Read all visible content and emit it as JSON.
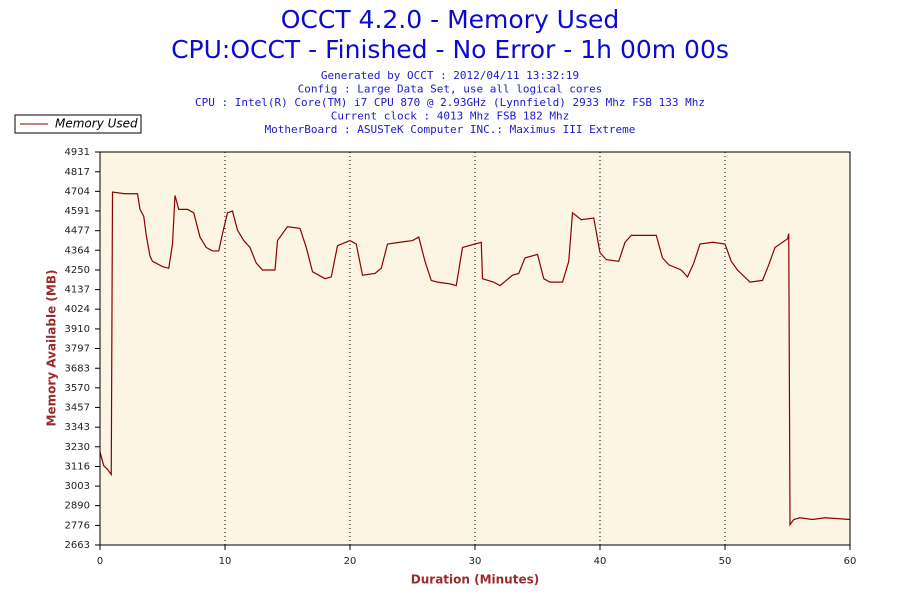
{
  "chart_data": {
    "type": "line",
    "title": "OCCT 4.2.0 - Memory Used",
    "subtitle": "CPU:OCCT - Finished - No Error - 1h 00m 00s",
    "info": [
      "Generated by OCCT : 2012/04/11 13:32:19",
      "Config : Large Data Set, use all logical cores",
      "CPU : Intel(R) Core(TM) i7 CPU 870 @ 2.93GHz (Lynnfield) 2933 Mhz FSB 133 Mhz",
      "Current clock : 4013 Mhz FSB 182 Mhz",
      "MotherBoard : ASUSTeK Computer INC.: Maximus III Extreme"
    ],
    "xlabel": "Duration (Minutes)",
    "ylabel": "Memory Available (MB)",
    "xlim": [
      0,
      60
    ],
    "xticks": [
      0,
      10,
      20,
      30,
      40,
      50,
      60
    ],
    "ylim": [
      2663,
      4931
    ],
    "yticks": [
      2663,
      2776,
      2890,
      3003,
      3116,
      3230,
      3343,
      3457,
      3570,
      3683,
      3797,
      3910,
      4024,
      4137,
      4250,
      4364,
      4477,
      4591,
      4704,
      4817,
      4931
    ],
    "grid": true,
    "x": [
      0,
      0.3,
      0.6,
      0.9,
      1.0,
      2,
      3.0,
      3.2,
      3.5,
      3.7,
      4,
      4.2,
      5,
      5.5,
      5.8,
      6,
      6.3,
      7,
      7.5,
      8,
      8.5,
      9,
      9.5,
      9.8,
      10.2,
      10.6,
      11,
      11.5,
      12,
      12.5,
      13,
      14,
      14.2,
      15,
      16,
      16.5,
      17,
      17.5,
      18,
      18.5,
      19,
      20,
      20.5,
      21,
      22,
      22.5,
      23,
      24,
      25,
      25.5,
      26,
      26.5,
      27,
      28,
      28.5,
      29,
      30,
      30.5,
      30.6,
      31.5,
      32,
      33,
      33.5,
      34,
      35,
      35.5,
      36,
      37,
      37.5,
      37.8,
      38.5,
      39.5,
      40,
      40.5,
      41.5,
      42,
      42.5,
      44.5,
      45,
      45.5,
      46.5,
      47,
      47.5,
      48,
      49,
      50,
      50.5,
      51,
      52,
      53,
      53.5,
      54,
      55,
      55.1,
      55.2,
      55.5,
      56,
      57,
      58,
      60
    ],
    "series": [
      {
        "name": "Memory Used",
        "color": "#8b0000",
        "values": [
          3200,
          3120,
          3100,
          3070,
          4700,
          4690,
          4690,
          4600,
          4560,
          4450,
          4330,
          4300,
          4270,
          4260,
          4400,
          4680,
          4600,
          4600,
          4580,
          4440,
          4380,
          4360,
          4360,
          4460,
          4580,
          4590,
          4480,
          4420,
          4380,
          4290,
          4250,
          4250,
          4420,
          4500,
          4490,
          4380,
          4240,
          4220,
          4200,
          4210,
          4390,
          4420,
          4400,
          4220,
          4230,
          4260,
          4400,
          4410,
          4420,
          4440,
          4300,
          4190,
          4180,
          4170,
          4160,
          4380,
          4400,
          4410,
          4200,
          4180,
          4160,
          4220,
          4230,
          4320,
          4340,
          4200,
          4180,
          4180,
          4300,
          4580,
          4540,
          4550,
          4350,
          4310,
          4300,
          4410,
          4450,
          4450,
          4320,
          4280,
          4250,
          4210,
          4290,
          4400,
          4410,
          4400,
          4300,
          4250,
          4180,
          4190,
          4280,
          4380,
          4430,
          4460,
          2780,
          2810,
          2820,
          2810,
          2820,
          2810
        ]
      }
    ]
  }
}
